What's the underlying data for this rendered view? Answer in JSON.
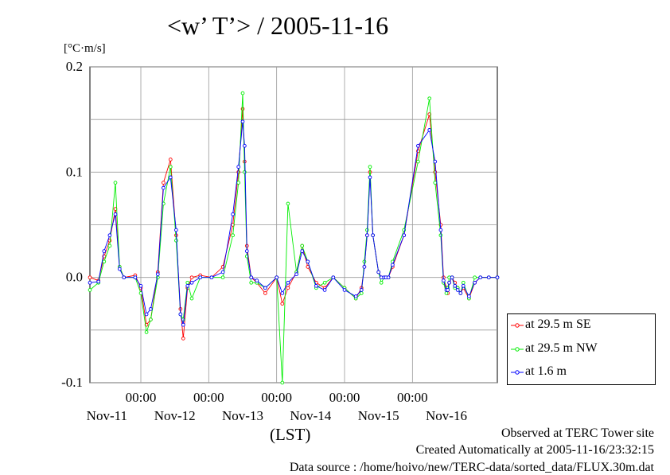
{
  "title": "<w’ T’> / 2005-11-16",
  "unit_label": "[°C·m/s]",
  "footer": {
    "observed": "Observed at TERC Tower site",
    "created": "Created Automatically at 2005-11-16/23:32:15",
    "source": "Data source : /home/hoivo/new/TERC-data/sorted_data/FLUX.30m.dat"
  },
  "chart_data": {
    "type": "line",
    "title": "<w’ T’> / 2005-11-16",
    "ylabel": "[°C·m/s]",
    "xlabel": "(LST)",
    "ylim": [
      -0.1,
      0.2
    ],
    "yticks": [
      -0.1,
      0.0,
      0.1,
      0.2
    ],
    "ytick_labels": [
      "-0.1",
      "0.0",
      "0.1",
      "0.2"
    ],
    "xlim": [
      "2005-11-10T06:00",
      "2005-11-16T06:00"
    ],
    "xticks": [
      "2005-11-11T00:00",
      "2005-11-12T00:00",
      "2005-11-13T00:00",
      "2005-11-14T00:00",
      "2005-11-15T00:00"
    ],
    "xtick_time_label": "00:00",
    "date_labels": [
      {
        "at": "2005-11-10T12:00",
        "label": "Nov-11"
      },
      {
        "at": "2005-11-11T12:00",
        "label": "Nov-12"
      },
      {
        "at": "2005-11-12T12:00",
        "label": "Nov-13"
      },
      {
        "at": "2005-11-13T12:00",
        "label": "Nov-14"
      },
      {
        "at": "2005-11-14T12:00",
        "label": "Nov-15"
      },
      {
        "at": "2005-11-15T12:00",
        "label": "Nov-16"
      }
    ],
    "grid": true,
    "legend_position": "outside-right-bottom",
    "series": [
      {
        "name": "at 29.5 m SE",
        "color": "#ff0000",
        "x": [
          "2005-11-10T06:00",
          "2005-11-10T09:00",
          "2005-11-10T11:00",
          "2005-11-10T13:00",
          "2005-11-10T15:00",
          "2005-11-10T16:30",
          "2005-11-10T18:00",
          "2005-11-10T22:00",
          "2005-11-11T00:00",
          "2005-11-11T02:00",
          "2005-11-11T03:30",
          "2005-11-11T06:00",
          "2005-11-11T08:00",
          "2005-11-11T10:30",
          "2005-11-11T12:30",
          "2005-11-11T14:00",
          "2005-11-11T15:00",
          "2005-11-11T16:30",
          "2005-11-11T18:00",
          "2005-11-11T21:00",
          "2005-11-12T01:00",
          "2005-11-12T05:00",
          "2005-11-12T08:30",
          "2005-11-12T10:30",
          "2005-11-12T12:00",
          "2005-11-12T12:40",
          "2005-11-12T13:30",
          "2005-11-12T15:00",
          "2005-11-12T17:00",
          "2005-11-12T20:00",
          "2005-11-13T00:00",
          "2005-11-13T02:00",
          "2005-11-13T04:00",
          "2005-11-13T07:00",
          "2005-11-13T09:00",
          "2005-11-13T11:00",
          "2005-11-13T14:00",
          "2005-11-13T17:00",
          "2005-11-13T20:00",
          "2005-11-14T00:00",
          "2005-11-14T04:00",
          "2005-11-14T06:00",
          "2005-11-14T07:00",
          "2005-11-14T08:00",
          "2005-11-14T09:00",
          "2005-11-14T10:00",
          "2005-11-14T12:00",
          "2005-11-14T13:00",
          "2005-11-14T14:00",
          "2005-11-14T14:40",
          "2005-11-14T15:30",
          "2005-11-14T17:00",
          "2005-11-14T21:00",
          "2005-11-15T02:00",
          "2005-11-15T06:00",
          "2005-11-15T08:00",
          "2005-11-15T10:00",
          "2005-11-15T11:00",
          "2005-11-15T12:00",
          "2005-11-15T12:30",
          "2005-11-15T13:00",
          "2005-11-15T14:00",
          "2005-11-15T15:00",
          "2005-11-15T16:00",
          "2005-11-15T17:00",
          "2005-11-15T18:00",
          "2005-11-15T20:00",
          "2005-11-15T22:00",
          "2005-11-16T00:00",
          "2005-11-16T03:00",
          "2005-11-16T06:00"
        ],
        "y": [
          0.0,
          -0.003,
          0.02,
          0.035,
          0.065,
          0.01,
          0.0,
          0.002,
          -0.01,
          -0.045,
          -0.04,
          0.005,
          0.09,
          0.112,
          0.04,
          -0.03,
          -0.058,
          -0.01,
          0.0,
          0.002,
          0.0,
          0.01,
          0.05,
          0.1,
          0.16,
          0.11,
          0.03,
          0.0,
          -0.005,
          -0.015,
          0.0,
          -0.025,
          -0.01,
          0.005,
          0.03,
          0.01,
          -0.005,
          -0.01,
          0.0,
          -0.01,
          -0.02,
          -0.01,
          0.01,
          0.04,
          0.1,
          0.04,
          0.005,
          0.0,
          0.0,
          0.0,
          0.0,
          0.01,
          0.04,
          0.12,
          0.155,
          0.1,
          0.05,
          0.0,
          -0.01,
          -0.015,
          -0.005,
          0.0,
          -0.005,
          -0.01,
          -0.015,
          -0.01,
          -0.02,
          -0.005,
          0.0,
          0.0,
          0.0
        ]
      },
      {
        "name": "at 29.5 m NW",
        "color": "#00ee00",
        "x": [
          "2005-11-10T06:00",
          "2005-11-10T09:00",
          "2005-11-10T11:00",
          "2005-11-10T13:00",
          "2005-11-10T15:00",
          "2005-11-10T16:30",
          "2005-11-10T18:00",
          "2005-11-10T22:00",
          "2005-11-11T00:00",
          "2005-11-11T02:00",
          "2005-11-11T03:30",
          "2005-11-11T06:00",
          "2005-11-11T08:00",
          "2005-11-11T10:30",
          "2005-11-11T12:30",
          "2005-11-11T14:00",
          "2005-11-11T15:00",
          "2005-11-11T16:30",
          "2005-11-11T18:00",
          "2005-11-11T21:00",
          "2005-11-12T01:00",
          "2005-11-12T05:00",
          "2005-11-12T08:30",
          "2005-11-12T10:30",
          "2005-11-12T12:00",
          "2005-11-12T12:40",
          "2005-11-12T13:30",
          "2005-11-12T15:00",
          "2005-11-12T17:00",
          "2005-11-12T20:00",
          "2005-11-13T00:00",
          "2005-11-13T02:00",
          "2005-11-13T04:00",
          "2005-11-13T07:00",
          "2005-11-13T09:00",
          "2005-11-13T11:00",
          "2005-11-13T14:00",
          "2005-11-13T17:00",
          "2005-11-13T20:00",
          "2005-11-14T00:00",
          "2005-11-14T04:00",
          "2005-11-14T06:00",
          "2005-11-14T07:00",
          "2005-11-14T08:00",
          "2005-11-14T09:00",
          "2005-11-14T10:00",
          "2005-11-14T12:00",
          "2005-11-14T13:00",
          "2005-11-14T14:00",
          "2005-11-14T14:40",
          "2005-11-14T15:30",
          "2005-11-14T17:00",
          "2005-11-14T21:00",
          "2005-11-15T02:00",
          "2005-11-15T06:00",
          "2005-11-15T08:00",
          "2005-11-15T10:00",
          "2005-11-15T11:00",
          "2005-11-15T12:00",
          "2005-11-15T12:30",
          "2005-11-15T13:00",
          "2005-11-15T14:00",
          "2005-11-15T15:00",
          "2005-11-15T16:00",
          "2005-11-15T17:00",
          "2005-11-15T18:00",
          "2005-11-15T20:00",
          "2005-11-15T22:00",
          "2005-11-16T00:00",
          "2005-11-16T03:00",
          "2005-11-16T06:00"
        ],
        "y": [
          -0.012,
          -0.005,
          0.015,
          0.03,
          0.09,
          0.01,
          0.0,
          0.0,
          -0.015,
          -0.052,
          -0.04,
          0.0,
          0.07,
          0.105,
          0.035,
          -0.035,
          -0.04,
          -0.005,
          -0.02,
          0.0,
          0.0,
          0.0,
          0.04,
          0.09,
          0.175,
          0.1,
          0.02,
          -0.005,
          -0.005,
          -0.01,
          0.0,
          -0.1,
          0.07,
          0.005,
          0.03,
          0.015,
          -0.01,
          -0.005,
          0.0,
          -0.01,
          -0.02,
          -0.015,
          0.015,
          0.045,
          0.105,
          0.04,
          0.005,
          -0.005,
          0.0,
          0.0,
          0.0,
          0.015,
          0.045,
          0.11,
          0.17,
          0.09,
          0.04,
          -0.005,
          -0.015,
          -0.01,
          0.0,
          0.0,
          -0.01,
          -0.01,
          -0.015,
          -0.005,
          -0.02,
          0.0,
          0.0,
          0.0,
          0.0
        ]
      },
      {
        "name": "at 1.6 m",
        "color": "#0000ff",
        "x": [
          "2005-11-10T06:00",
          "2005-11-10T09:00",
          "2005-11-10T11:00",
          "2005-11-10T13:00",
          "2005-11-10T15:00",
          "2005-11-10T16:30",
          "2005-11-10T18:00",
          "2005-11-10T22:00",
          "2005-11-11T00:00",
          "2005-11-11T02:00",
          "2005-11-11T03:30",
          "2005-11-11T06:00",
          "2005-11-11T08:00",
          "2005-11-11T10:30",
          "2005-11-11T12:30",
          "2005-11-11T14:00",
          "2005-11-11T15:00",
          "2005-11-11T16:30",
          "2005-11-11T18:00",
          "2005-11-11T21:00",
          "2005-11-12T01:00",
          "2005-11-12T05:00",
          "2005-11-12T08:30",
          "2005-11-12T10:30",
          "2005-11-12T12:00",
          "2005-11-12T12:40",
          "2005-11-12T13:30",
          "2005-11-12T15:00",
          "2005-11-12T17:00",
          "2005-11-12T20:00",
          "2005-11-13T00:00",
          "2005-11-13T02:00",
          "2005-11-13T04:00",
          "2005-11-13T07:00",
          "2005-11-13T09:00",
          "2005-11-13T11:00",
          "2005-11-13T14:00",
          "2005-11-13T17:00",
          "2005-11-13T20:00",
          "2005-11-14T00:00",
          "2005-11-14T04:00",
          "2005-11-14T06:00",
          "2005-11-14T07:00",
          "2005-11-14T08:00",
          "2005-11-14T09:00",
          "2005-11-14T10:00",
          "2005-11-14T12:00",
          "2005-11-14T13:00",
          "2005-11-14T14:00",
          "2005-11-14T14:40",
          "2005-11-14T15:30",
          "2005-11-14T17:00",
          "2005-11-14T21:00",
          "2005-11-15T02:00",
          "2005-11-15T06:00",
          "2005-11-15T08:00",
          "2005-11-15T10:00",
          "2005-11-15T11:00",
          "2005-11-15T12:00",
          "2005-11-15T12:30",
          "2005-11-15T13:00",
          "2005-11-15T14:00",
          "2005-11-15T15:00",
          "2005-11-15T16:00",
          "2005-11-15T17:00",
          "2005-11-15T18:00",
          "2005-11-15T20:00",
          "2005-11-15T22:00",
          "2005-11-16T00:00",
          "2005-11-16T03:00",
          "2005-11-16T06:00"
        ],
        "y": [
          -0.005,
          -0.004,
          0.025,
          0.04,
          0.06,
          0.008,
          0.0,
          0.0,
          -0.008,
          -0.035,
          -0.03,
          0.003,
          0.085,
          0.095,
          0.045,
          -0.035,
          -0.045,
          -0.008,
          -0.005,
          0.0,
          0.0,
          0.005,
          0.06,
          0.105,
          0.148,
          0.125,
          0.025,
          0.0,
          -0.003,
          -0.01,
          0.0,
          -0.015,
          -0.005,
          0.003,
          0.025,
          0.015,
          -0.008,
          -0.012,
          0.0,
          -0.012,
          -0.018,
          -0.012,
          0.01,
          0.04,
          0.095,
          0.04,
          0.005,
          0.0,
          0.0,
          0.0,
          0.0,
          0.012,
          0.04,
          0.125,
          0.14,
          0.11,
          0.045,
          -0.003,
          -0.012,
          -0.012,
          -0.005,
          0.0,
          -0.008,
          -0.012,
          -0.015,
          -0.008,
          -0.018,
          -0.005,
          0.0,
          0.0,
          0.0
        ]
      }
    ]
  }
}
